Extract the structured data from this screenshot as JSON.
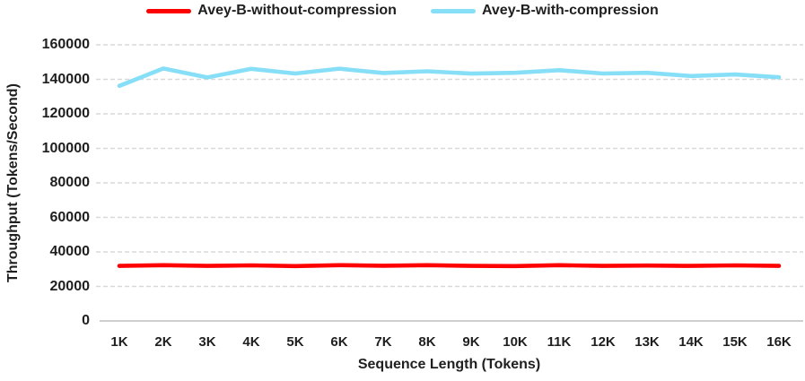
{
  "colors": {
    "background": "#ffffff",
    "text": "#1f1f1f",
    "gridline": "#d9d9d9",
    "axis_line": "#bfbfbf",
    "series_without_compression": "#fe0000",
    "series_with_compression": "#86dff7"
  },
  "chart_data": {
    "type": "line",
    "title": "",
    "xlabel": "Sequence Length (Tokens)",
    "ylabel": "Throughput (Tokens/Second)",
    "categories": [
      "1K",
      "2K",
      "3K",
      "4K",
      "5K",
      "6K",
      "7K",
      "8K",
      "9K",
      "10K",
      "11K",
      "12K",
      "13K",
      "14K",
      "15K",
      "16K"
    ],
    "ylim": [
      0,
      160000
    ],
    "yticks": [
      0,
      20000,
      40000,
      60000,
      80000,
      100000,
      120000,
      140000,
      160000
    ],
    "grid": "horizontal-dashed",
    "legend_position": "top-center",
    "series": [
      {
        "name": "Avey-B-without-compression",
        "color": "#fe0000",
        "values": [
          31900,
          32300,
          31900,
          32200,
          31800,
          32300,
          32000,
          32300,
          31900,
          31800,
          32300,
          31900,
          32100,
          31900,
          32200,
          31900
        ]
      },
      {
        "name": "Avey-B-with-compression",
        "color": "#86dff7",
        "values": [
          136200,
          146300,
          141100,
          146100,
          143400,
          146200,
          143700,
          144700,
          143300,
          143800,
          145300,
          143400,
          143800,
          141900,
          142800,
          141200
        ]
      }
    ]
  }
}
